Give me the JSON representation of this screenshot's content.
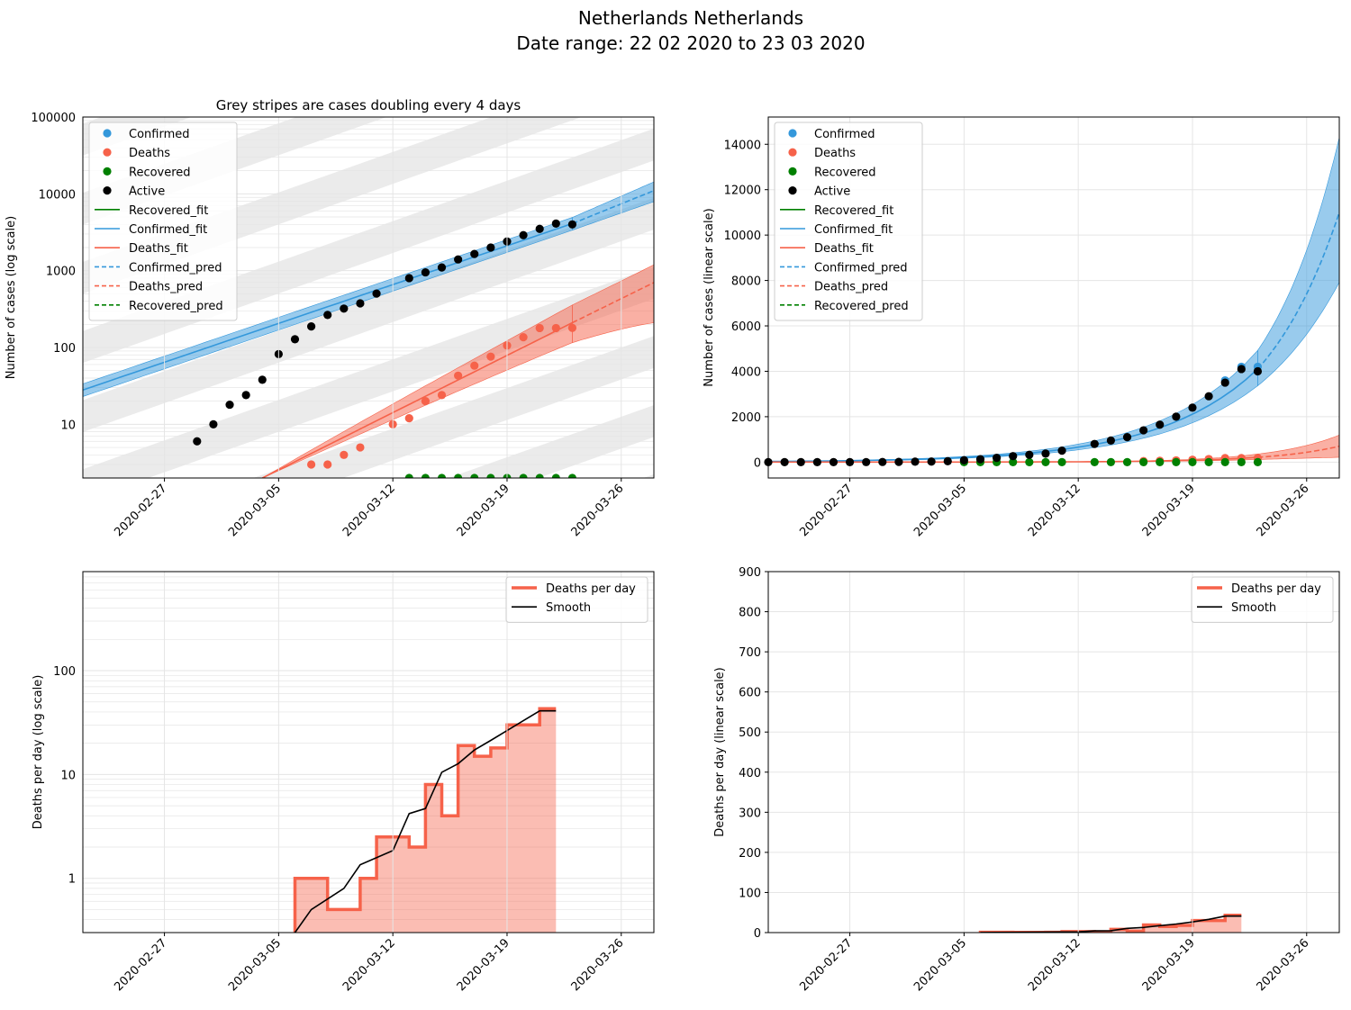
{
  "suptitle": "Netherlands Netherlands",
  "subtitle": "Date range: 22 02 2020 to 23 03 2020",
  "colors": {
    "confirmed": "#3498db",
    "deaths": "#f6624a",
    "recovered": "#008000",
    "active": "#000000",
    "stripe": "#ebebeb",
    "grid": "#e5e5e5"
  },
  "date_ticks": [
    "2020-02-27",
    "2020-03-05",
    "2020-03-12",
    "2020-03-19",
    "2020-03-26"
  ],
  "cases_legend": [
    {
      "label": "Confirmed",
      "kind": "dot",
      "color": "confirmed"
    },
    {
      "label": "Deaths",
      "kind": "dot",
      "color": "deaths"
    },
    {
      "label": "Recovered",
      "kind": "dot",
      "color": "recovered"
    },
    {
      "label": "Active",
      "kind": "dot",
      "color": "active"
    },
    {
      "label": "Recovered_fit",
      "kind": "line",
      "color": "recovered"
    },
    {
      "label": "Confirmed_fit",
      "kind": "line",
      "color": "confirmed"
    },
    {
      "label": "Deaths_fit",
      "kind": "line",
      "color": "deaths"
    },
    {
      "label": "Confirmed_pred",
      "kind": "dash",
      "color": "confirmed"
    },
    {
      "label": "Deaths_pred",
      "kind": "dash",
      "color": "deaths"
    },
    {
      "label": "Recovered_pred",
      "kind": "dash",
      "color": "recovered"
    }
  ],
  "deaths_legend": [
    {
      "label": "Deaths per day",
      "kind": "thick",
      "color": "deaths"
    },
    {
      "label": "Smooth",
      "kind": "line",
      "color": "active"
    }
  ],
  "chart_data": [
    {
      "type": "scatter",
      "title": "Grey stripes are cases doubling every 4 days",
      "ylabel": "Number of cases (log scale)",
      "yscale": "log",
      "xlim": [
        "2020-02-22",
        "2020-03-28"
      ],
      "ylim": [
        2,
        100000
      ],
      "ytick_labels": [
        "10",
        "100",
        "1000",
        "10000",
        "100000"
      ],
      "doubling_days": 4,
      "series": [
        {
          "name": "Active",
          "x": [
            "2020-02-29",
            "2020-03-01",
            "2020-03-02",
            "2020-03-03",
            "2020-03-04",
            "2020-03-05",
            "2020-03-06",
            "2020-03-07",
            "2020-03-08",
            "2020-03-09",
            "2020-03-10",
            "2020-03-11",
            "2020-03-13",
            "2020-03-14",
            "2020-03-15",
            "2020-03-16",
            "2020-03-17",
            "2020-03-18",
            "2020-03-19",
            "2020-03-20",
            "2020-03-21",
            "2020-03-22",
            "2020-03-23"
          ],
          "y": [
            6,
            10,
            18,
            24,
            38,
            82,
            128,
            188,
            265,
            321,
            375,
            503,
            800,
            950,
            1100,
            1400,
            1650,
            2000,
            2400,
            2900,
            3500,
            4100,
            4000
          ]
        },
        {
          "name": "Deaths",
          "x": [
            "2020-03-07",
            "2020-03-08",
            "2020-03-09",
            "2020-03-10",
            "2020-03-12",
            "2020-03-13",
            "2020-03-14",
            "2020-03-15",
            "2020-03-16",
            "2020-03-17",
            "2020-03-18",
            "2020-03-19",
            "2020-03-20",
            "2020-03-21",
            "2020-03-22",
            "2020-03-23"
          ],
          "y": [
            3,
            3,
            4,
            5,
            10,
            12,
            20,
            24,
            43,
            58,
            76,
            106,
            136,
            179,
            179,
            180
          ]
        },
        {
          "name": "Recovered",
          "x": [
            "2020-03-13",
            "2020-03-14",
            "2020-03-15",
            "2020-03-16",
            "2020-03-17",
            "2020-03-18",
            "2020-03-19",
            "2020-03-20",
            "2020-03-21",
            "2020-03-22",
            "2020-03-23"
          ],
          "y": [
            2,
            2,
            2,
            2,
            2,
            2,
            2,
            2,
            2,
            2,
            2
          ]
        },
        {
          "name": "Confirmed_fit",
          "x": [
            "2020-02-22",
            "2020-03-23"
          ],
          "y": [
            28,
            4100
          ]
        },
        {
          "name": "Confirmed_pred",
          "x": [
            "2020-03-23",
            "2020-03-28"
          ],
          "y": [
            4100,
            11000
          ]
        },
        {
          "name": "Deaths_fit",
          "x": [
            "2020-03-04",
            "2020-03-23"
          ],
          "y": [
            2,
            210
          ]
        },
        {
          "name": "Deaths_pred",
          "x": [
            "2020-03-23",
            "2020-03-28"
          ],
          "y": [
            210,
            700
          ]
        }
      ]
    },
    {
      "type": "scatter",
      "ylabel": "Number of cases (linear scale)",
      "yscale": "linear",
      "xlim": [
        "2020-02-22",
        "2020-03-28"
      ],
      "ylim": [
        -700,
        15200
      ],
      "yticks": [
        0,
        2000,
        4000,
        6000,
        8000,
        10000,
        12000,
        14000
      ],
      "series": [
        {
          "name": "Active",
          "x": [
            "2020-02-22",
            "2020-02-23",
            "2020-02-24",
            "2020-02-25",
            "2020-02-26",
            "2020-02-27",
            "2020-02-28",
            "2020-02-29",
            "2020-03-01",
            "2020-03-02",
            "2020-03-03",
            "2020-03-04",
            "2020-03-05",
            "2020-03-06",
            "2020-03-07",
            "2020-03-08",
            "2020-03-09",
            "2020-03-10",
            "2020-03-11",
            "2020-03-13",
            "2020-03-14",
            "2020-03-15",
            "2020-03-16",
            "2020-03-17",
            "2020-03-18",
            "2020-03-19",
            "2020-03-20",
            "2020-03-21",
            "2020-03-22",
            "2020-03-23"
          ],
          "y": [
            0,
            0,
            0,
            0,
            0,
            0,
            1,
            6,
            10,
            18,
            24,
            38,
            82,
            128,
            188,
            265,
            321,
            375,
            503,
            800,
            950,
            1100,
            1400,
            1650,
            2000,
            2400,
            2900,
            3500,
            4100,
            4000
          ]
        },
        {
          "name": "Confirmed",
          "x": [
            "2020-03-21",
            "2020-03-22",
            "2020-03-23"
          ],
          "y": [
            3600,
            4200,
            4200
          ]
        },
        {
          "name": "Deaths",
          "x": [
            "2020-03-16",
            "2020-03-17",
            "2020-03-18",
            "2020-03-19",
            "2020-03-20",
            "2020-03-21",
            "2020-03-22",
            "2020-03-23"
          ],
          "y": [
            43,
            58,
            76,
            106,
            136,
            179,
            179,
            180
          ]
        },
        {
          "name": "Recovered",
          "x": [
            "2020-03-05",
            "2020-03-06",
            "2020-03-07",
            "2020-03-08",
            "2020-03-09",
            "2020-03-10",
            "2020-03-11",
            "2020-03-13",
            "2020-03-14",
            "2020-03-15",
            "2020-03-16",
            "2020-03-17",
            "2020-03-18",
            "2020-03-19",
            "2020-03-20",
            "2020-03-21",
            "2020-03-22",
            "2020-03-23"
          ],
          "y": [
            0,
            0,
            0,
            0,
            0,
            0,
            0,
            0,
            0,
            0,
            0,
            0,
            0,
            0,
            0,
            0,
            0,
            0
          ]
        },
        {
          "name": "Confirmed_fit",
          "x": [
            "2020-02-22",
            "2020-03-23"
          ],
          "y": [
            28,
            4100
          ]
        },
        {
          "name": "Confirmed_pred",
          "x": [
            "2020-03-23",
            "2020-03-28"
          ],
          "y": [
            4100,
            11000
          ]
        },
        {
          "name": "Deaths_fit",
          "x": [
            "2020-03-04",
            "2020-03-23"
          ],
          "y": [
            2,
            210
          ]
        },
        {
          "name": "Deaths_pred",
          "x": [
            "2020-03-23",
            "2020-03-28"
          ],
          "y": [
            210,
            700
          ]
        }
      ]
    },
    {
      "type": "bar",
      "ylabel": "Deaths per day (log scale)",
      "yscale": "log",
      "xlim": [
        "2020-02-22",
        "2020-03-28"
      ],
      "ylim": [
        0.3,
        900
      ],
      "ytick_labels": [
        "1",
        "10",
        "100"
      ],
      "series": [
        {
          "name": "Deaths per day",
          "x": [
            "2020-03-06",
            "2020-03-08",
            "2020-03-10",
            "2020-03-11",
            "2020-03-13",
            "2020-03-14",
            "2020-03-15",
            "2020-03-16",
            "2020-03-17",
            "2020-03-18",
            "2020-03-19",
            "2020-03-21",
            "2020-03-22"
          ],
          "y": [
            1,
            0.5,
            1,
            2.5,
            2,
            8,
            4,
            19,
            15,
            18,
            30,
            43,
            43
          ]
        },
        {
          "name": "Smooth",
          "x": [
            "2020-03-06",
            "2020-03-07",
            "2020-03-09",
            "2020-03-10",
            "2020-03-12",
            "2020-03-13",
            "2020-03-14",
            "2020-03-15",
            "2020-03-16",
            "2020-03-17",
            "2020-03-18",
            "2020-03-19",
            "2020-03-20",
            "2020-03-21",
            "2020-03-22"
          ],
          "y": [
            0.3,
            0.5,
            0.8,
            1.35,
            1.85,
            4.2,
            4.7,
            10.5,
            12.7,
            17.2,
            21.3,
            26.5,
            33,
            41,
            41
          ]
        }
      ]
    },
    {
      "type": "bar",
      "ylabel": "Deaths per day (linear scale)",
      "yscale": "linear",
      "xlim": [
        "2020-02-22",
        "2020-03-28"
      ],
      "ylim": [
        0,
        900
      ],
      "yticks": [
        0,
        100,
        200,
        300,
        400,
        500,
        600,
        700,
        800,
        900
      ],
      "series": [
        {
          "name": "Deaths per day",
          "x": [
            "2020-03-06",
            "2020-03-08",
            "2020-03-10",
            "2020-03-11",
            "2020-03-13",
            "2020-03-14",
            "2020-03-15",
            "2020-03-16",
            "2020-03-17",
            "2020-03-18",
            "2020-03-19",
            "2020-03-21",
            "2020-03-22"
          ],
          "y": [
            1,
            0.5,
            1,
            2.5,
            2,
            8,
            4,
            19,
            15,
            18,
            30,
            43,
            43
          ]
        },
        {
          "name": "Smooth",
          "x": [
            "2020-03-06",
            "2020-03-07",
            "2020-03-09",
            "2020-03-10",
            "2020-03-12",
            "2020-03-13",
            "2020-03-14",
            "2020-03-15",
            "2020-03-16",
            "2020-03-17",
            "2020-03-18",
            "2020-03-19",
            "2020-03-20",
            "2020-03-21",
            "2020-03-22"
          ],
          "y": [
            0.3,
            0.5,
            0.8,
            1.35,
            1.85,
            4.2,
            4.7,
            10.5,
            12.7,
            17.2,
            21.3,
            26.5,
            33,
            41,
            41
          ]
        }
      ]
    }
  ]
}
